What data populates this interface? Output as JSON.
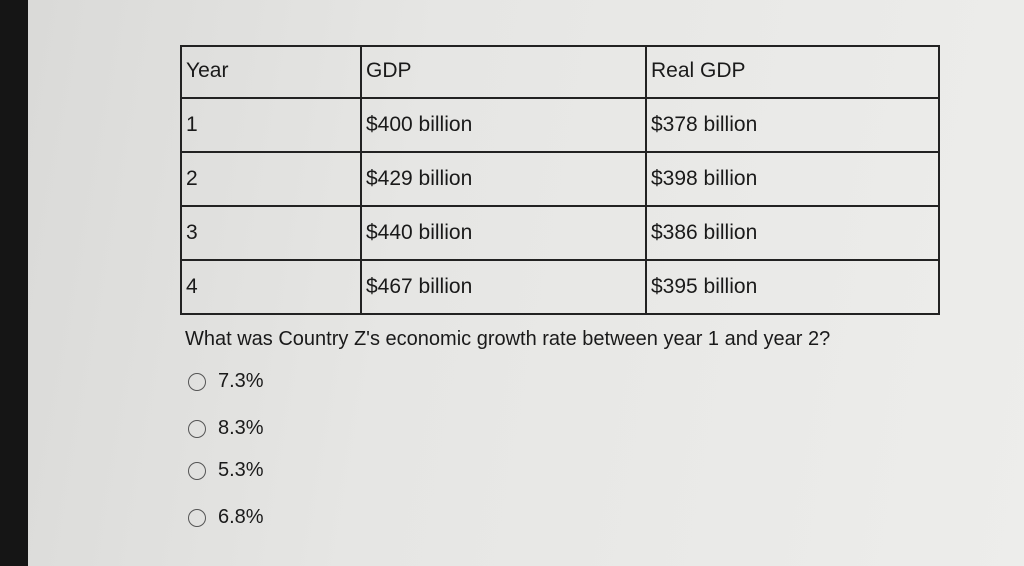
{
  "table": {
    "header": [
      "Year",
      "GDP",
      "Real GDP"
    ],
    "rows": [
      [
        "1",
        "$400 billion",
        "$378 billion"
      ],
      [
        "2",
        "$429 billion",
        "$398 billion"
      ],
      [
        "3",
        "$440 billion",
        "$386 billion"
      ],
      [
        "4",
        "$467 billion",
        "$395 billion"
      ]
    ]
  },
  "question": "What was Country Z's economic growth rate between year 1 and year 2?",
  "options": [
    "7.3%",
    "8.3%",
    "5.3%",
    "6.8%"
  ]
}
